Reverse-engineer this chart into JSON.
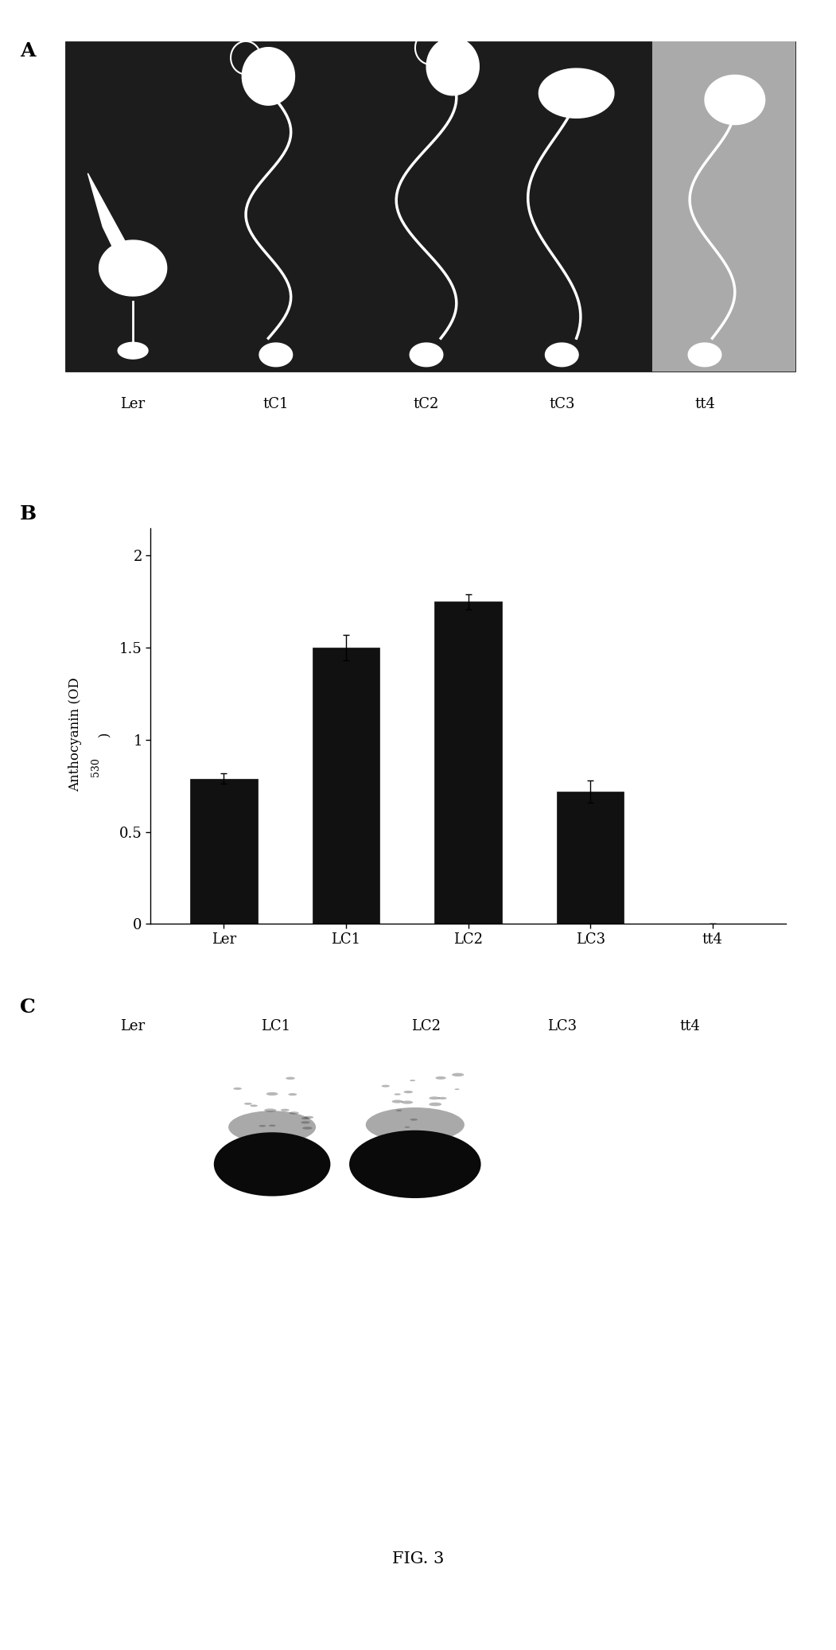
{
  "panel_A_label": "A",
  "panel_B_label": "B",
  "panel_C_label": "C",
  "panel_A_sublabels": [
    "Ler",
    "tC1",
    "tC2",
    "tC3",
    "tt4"
  ],
  "panel_B_categories": [
    "Ler",
    "LC1",
    "LC2",
    "LC3",
    "tt4"
  ],
  "panel_B_values": [
    0.79,
    1.5,
    1.75,
    0.72,
    0.0
  ],
  "panel_B_errors": [
    0.03,
    0.07,
    0.04,
    0.06,
    0.0
  ],
  "panel_B_yticks": [
    0,
    0.5,
    1,
    1.5,
    2
  ],
  "panel_B_ylim": [
    0,
    2.15
  ],
  "panel_C_labels": [
    "Ler",
    "LC1",
    "LC2",
    "LC3",
    "tt4"
  ],
  "bar_color": "#111111",
  "bg_color": "#ffffff",
  "fig_label_fontsize": 18,
  "tick_fontsize": 13,
  "caption": "FIG. 3",
  "panel_A_img_bg": "#1c1c1c",
  "panel_A_img_bg_light": "#aaaaaa"
}
